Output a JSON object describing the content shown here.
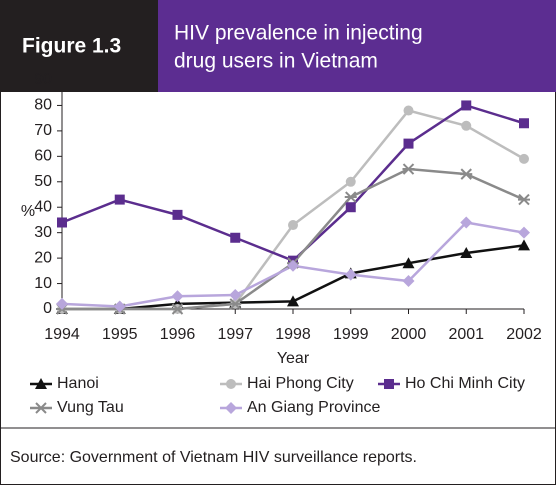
{
  "figure_label": "Figure 1.3",
  "title_lines": [
    "HIV prevalence in injecting",
    "drug users in Vietnam"
  ],
  "source": "Source: Government of Vietnam HIV surveillance reports.",
  "chart_data": {
    "type": "line",
    "x_label": "Year",
    "y_label": "%",
    "categories": [
      "1994",
      "1995",
      "1996",
      "1997",
      "1998",
      "1999",
      "2000",
      "2001",
      "2002"
    ],
    "ylim": [
      0,
      90
    ],
    "yticks": [
      0,
      10,
      20,
      30,
      40,
      50,
      60,
      70,
      80,
      90
    ],
    "series": [
      {
        "name": "Hanoi",
        "color": "#111111",
        "marker": "triangle",
        "values": [
          0,
          0,
          2,
          2.5,
          3,
          14,
          18,
          22,
          25
        ]
      },
      {
        "name": "Hai Phong City",
        "color": "#bdbdbd",
        "marker": "circle",
        "values": [
          0,
          0,
          0,
          2,
          33,
          50,
          78,
          72,
          59
        ]
      },
      {
        "name": "Ho Chi Minh City",
        "color": "#5b2d8e",
        "marker": "square",
        "values": [
          34,
          43,
          37,
          28,
          19,
          40,
          65,
          80,
          73
        ]
      },
      {
        "name": "Vung Tau",
        "color": "#8a8a8a",
        "marker": "asterisk",
        "values": [
          0,
          0,
          0,
          2,
          18,
          44,
          55,
          53,
          43
        ]
      },
      {
        "name": "An Giang Province",
        "color": "#b8a6dc",
        "marker": "diamond",
        "values": [
          2,
          1,
          5,
          5.5,
          17,
          13.5,
          11,
          34,
          30
        ]
      }
    ]
  }
}
